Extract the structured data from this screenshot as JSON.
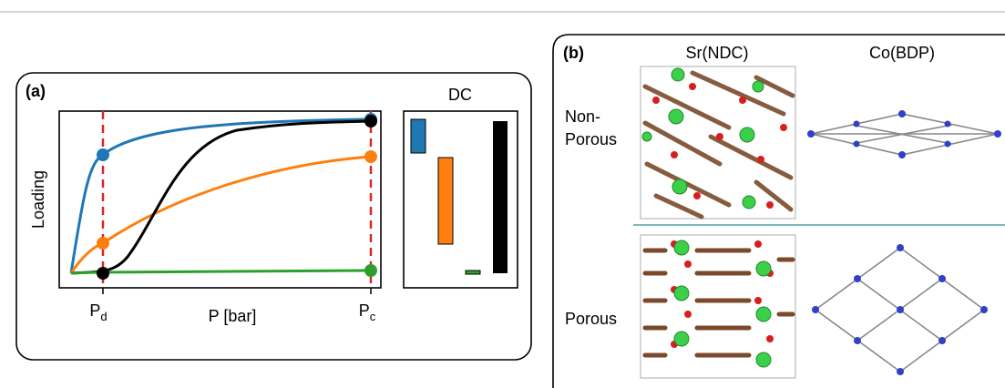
{
  "panel_a": {
    "label": "(a)",
    "y_axis_label": "Loading",
    "x_axis_label": "P [bar]",
    "x_ticks": [
      {
        "symbol": "P",
        "subscript": "d"
      },
      {
        "symbol": "P",
        "subscript": "c"
      }
    ],
    "inset_title": "DC"
  },
  "panel_b": {
    "label": "(b)",
    "columns": [
      "Sr(NDC)",
      "Co(BDP)"
    ],
    "rows": [
      [
        "Non-",
        "Porous"
      ],
      [
        "Porous"
      ]
    ]
  }
}
